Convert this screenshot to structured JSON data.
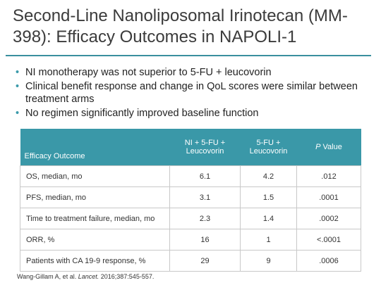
{
  "title": "Second-Line Nanoliposomal Irinotecan (MM-398): Efficacy Outcomes in NAPOLI-1",
  "bullets": [
    "NI monotherapy was not superior to 5-FU + leucovorin",
    "Clinical benefit response and change in QoL scores were similar between treatment arms",
    "No regimen significantly improved baseline function"
  ],
  "table": {
    "header": {
      "outcome": "Efficacy Outcome",
      "arm1": [
        "NI + 5-FU +",
        "Leucovorin"
      ],
      "arm2": [
        "5-FU +",
        "Leucovorin"
      ],
      "pvalue": {
        "italic": "P",
        "rest": "Value"
      }
    },
    "rows": [
      [
        "OS, median, mo",
        "6.1",
        "4.2",
        ".012"
      ],
      [
        "PFS, median, mo",
        "3.1",
        "1.5",
        ".0001"
      ],
      [
        "Time to treatment failure, median, mo",
        "2.3",
        "1.4",
        ".0002"
      ],
      [
        "ORR, %",
        "16",
        "1",
        "<.0001"
      ],
      [
        "Patients with CA 19-9 response, %",
        "29",
        "9",
        ".0006"
      ]
    ]
  },
  "citation": {
    "authors": "Wang-Gillam A, et al.",
    "journal": "Lancet.",
    "details": "2016;387:545-557."
  }
}
